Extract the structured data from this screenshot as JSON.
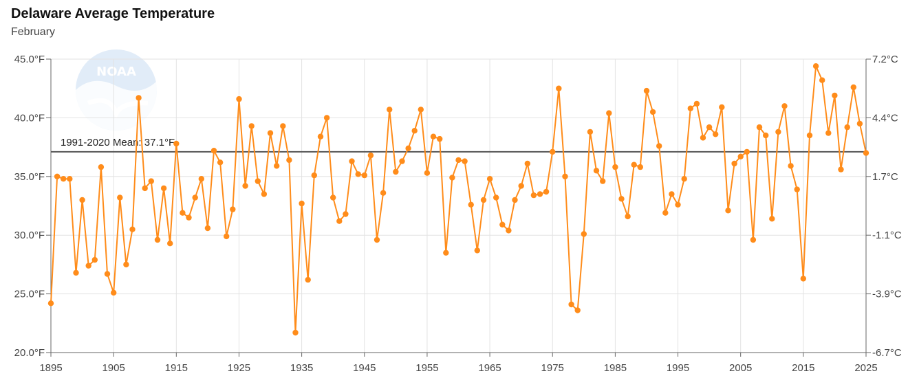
{
  "chart_data": {
    "type": "line",
    "title": "Delaware Average Temperature",
    "subtitle": "February",
    "x_range": [
      1895,
      2025
    ],
    "y_range_f": [
      20,
      45
    ],
    "grid": true,
    "x_ticks": [
      "1895",
      "1905",
      "1915",
      "1925",
      "1935",
      "1945",
      "1955",
      "1965",
      "1975",
      "1985",
      "1995",
      "2005",
      "2015",
      "2025"
    ],
    "y_ticks_left": [
      "45.0°F",
      "40.0°F",
      "35.0°F",
      "30.0°F",
      "25.0°F",
      "20.0°F"
    ],
    "y_ticks_right": [
      "7.2°C",
      "4.4°C",
      "1.7°C",
      "-1.1°C",
      "-3.9°C",
      "-6.7°C"
    ],
    "mean": {
      "label": "1991-2020 Mean: 37.1°F",
      "value": 37.1
    },
    "series": [
      {
        "color": "#ff8c1a",
        "x": [
          1895,
          1896,
          1897,
          1898,
          1899,
          1900,
          1901,
          1902,
          1903,
          1904,
          1905,
          1906,
          1907,
          1908,
          1909,
          1910,
          1911,
          1912,
          1913,
          1914,
          1915,
          1916,
          1917,
          1918,
          1919,
          1920,
          1921,
          1922,
          1923,
          1924,
          1925,
          1926,
          1927,
          1928,
          1929,
          1930,
          1931,
          1932,
          1933,
          1934,
          1935,
          1936,
          1937,
          1938,
          1939,
          1940,
          1941,
          1942,
          1943,
          1944,
          1945,
          1946,
          1947,
          1948,
          1949,
          1950,
          1951,
          1952,
          1953,
          1954,
          1955,
          1956,
          1957,
          1958,
          1959,
          1960,
          1961,
          1962,
          1963,
          1964,
          1965,
          1966,
          1967,
          1968,
          1969,
          1970,
          1971,
          1972,
          1973,
          1974,
          1975,
          1976,
          1977,
          1978,
          1979,
          1980,
          1981,
          1982,
          1983,
          1984,
          1985,
          1986,
          1987,
          1988,
          1989,
          1990,
          1991,
          1992,
          1993,
          1994,
          1995,
          1996,
          1997,
          1998,
          1999,
          2000,
          2001,
          2002,
          2003,
          2004,
          2005,
          2006,
          2007,
          2008,
          2009,
          2010,
          2011,
          2012,
          2013,
          2014,
          2015,
          2016,
          2017,
          2018,
          2019,
          2020,
          2021,
          2022,
          2023,
          2024,
          2025
        ],
        "y": [
          24.2,
          35.0,
          34.8,
          34.8,
          26.8,
          33.0,
          27.4,
          27.9,
          35.8,
          26.7,
          25.1,
          33.2,
          27.5,
          30.5,
          41.7,
          34.0,
          34.6,
          29.6,
          34.0,
          29.3,
          37.8,
          31.9,
          31.5,
          33.2,
          34.8,
          30.6,
          37.2,
          36.2,
          29.9,
          32.2,
          41.6,
          34.2,
          39.3,
          34.6,
          33.5,
          38.7,
          35.9,
          39.3,
          36.4,
          21.7,
          32.7,
          26.2,
          35.1,
          38.4,
          40.0,
          33.2,
          31.2,
          31.8,
          36.3,
          35.2,
          35.1,
          36.8,
          29.6,
          33.6,
          40.7,
          35.4,
          36.3,
          37.4,
          38.9,
          40.7,
          35.3,
          38.4,
          38.2,
          28.5,
          34.9,
          36.4,
          36.3,
          32.6,
          28.7,
          33.0,
          34.8,
          33.2,
          30.9,
          30.4,
          33.0,
          34.2,
          36.1,
          33.4,
          33.5,
          33.7,
          37.1,
          42.5,
          35.0,
          24.1,
          23.6,
          30.1,
          38.8,
          35.5,
          34.6,
          40.4,
          35.8,
          33.1,
          31.6,
          36.0,
          35.8,
          42.3,
          40.5,
          37.6,
          31.9,
          33.5,
          32.6,
          34.8,
          40.8,
          41.2,
          38.3,
          39.2,
          38.6,
          40.9,
          32.1,
          36.1,
          36.7,
          37.1,
          29.6,
          39.2,
          38.5,
          31.4,
          38.8,
          41.0,
          35.9,
          33.9,
          26.3,
          38.5,
          44.4,
          43.2,
          38.7,
          41.9,
          35.6,
          39.2,
          42.6,
          39.5,
          37.0
        ]
      }
    ]
  }
}
